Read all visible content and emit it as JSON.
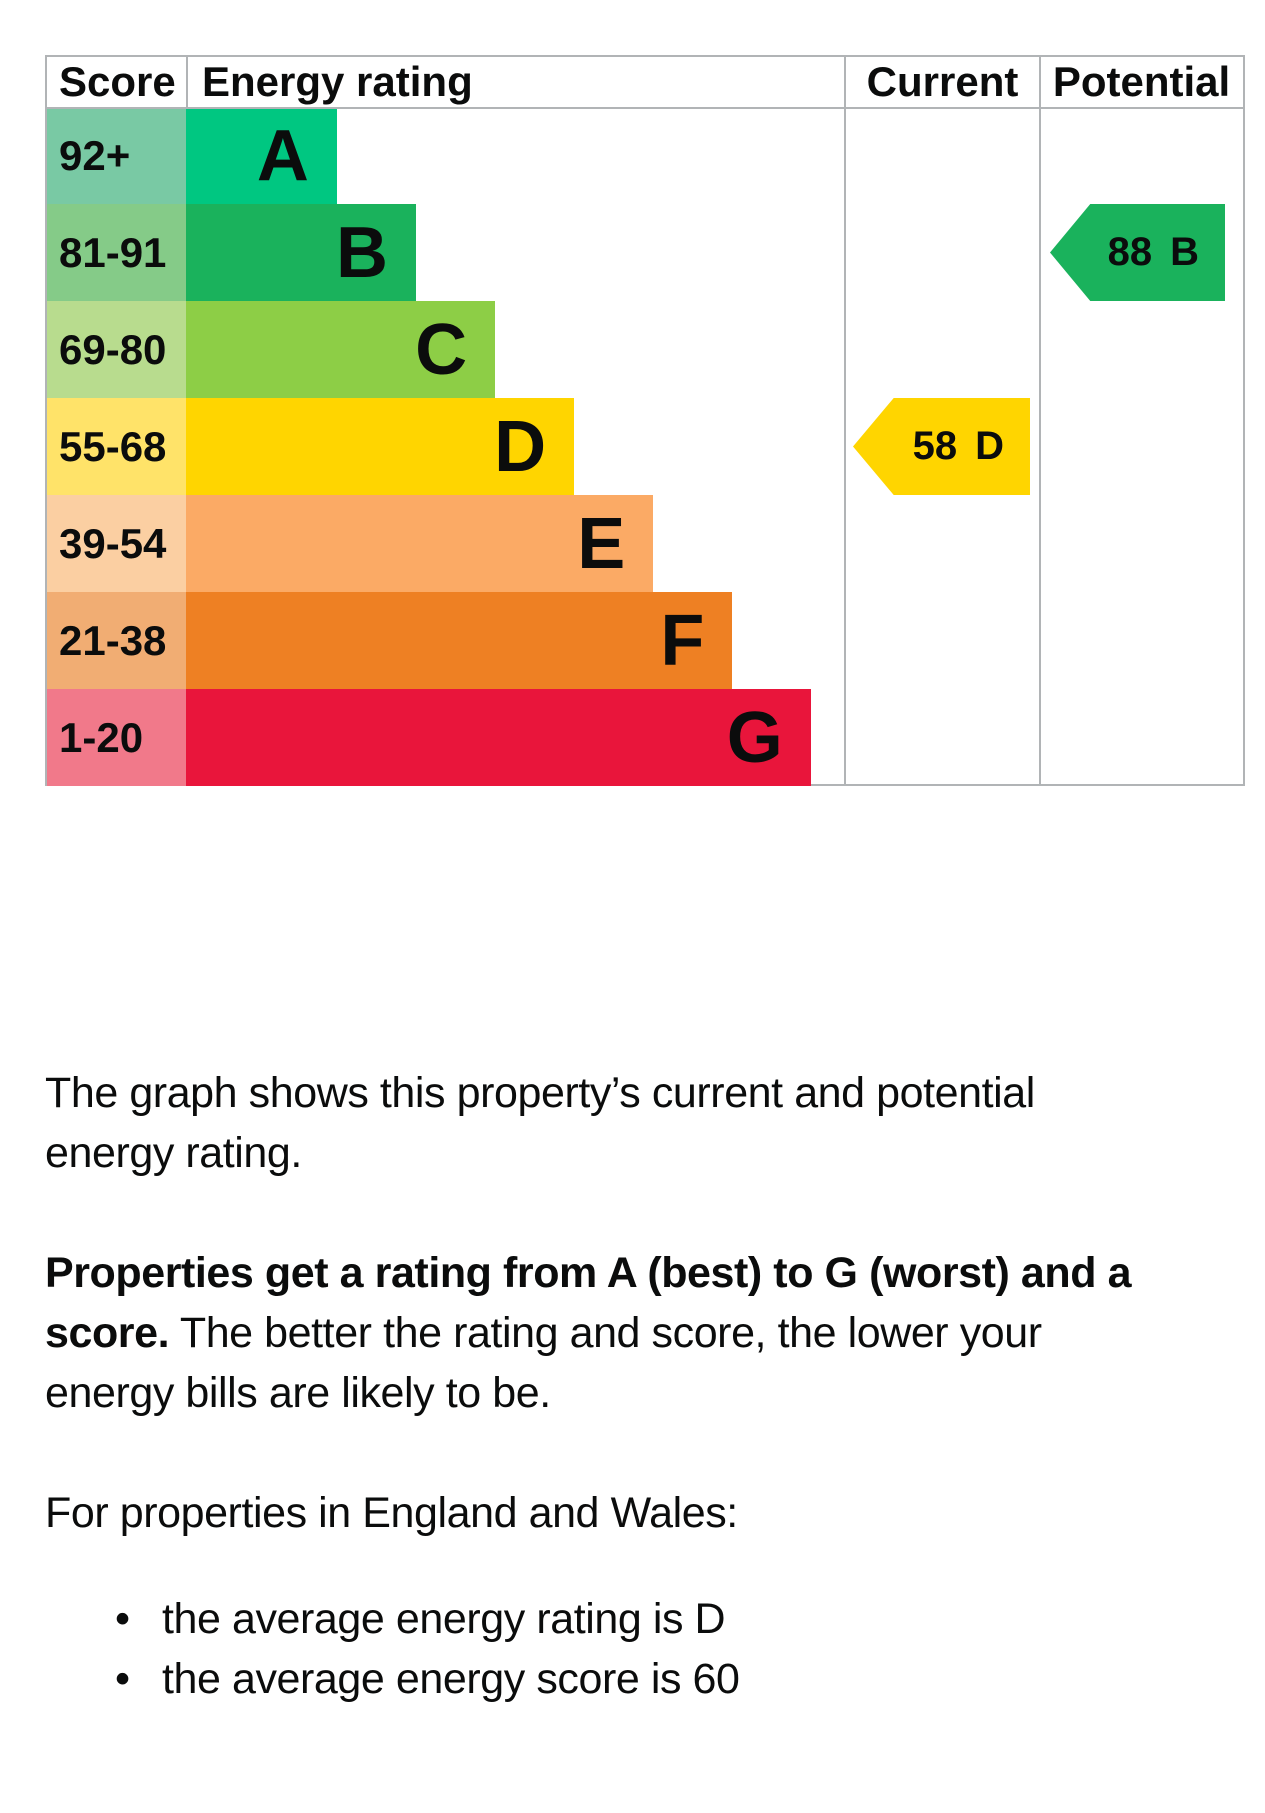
{
  "chart_data": {
    "type": "bar",
    "title": "Energy rating graph",
    "columns": [
      "Score",
      "Energy rating",
      "Current",
      "Potential"
    ],
    "bands": [
      {
        "letter": "A",
        "score_range": "92+",
        "bar_color": "#00c781",
        "score_cell_color": "#79c9a4",
        "width_pct": 22.9
      },
      {
        "letter": "B",
        "score_range": "81-91",
        "bar_color": "#1ab25c",
        "score_cell_color": "#85cb88",
        "width_pct": 34.9
      },
      {
        "letter": "C",
        "score_range": "69-80",
        "bar_color": "#8dce46",
        "score_cell_color": "#b8dc8e",
        "width_pct": 46.9
      },
      {
        "letter": "D",
        "score_range": "55-68",
        "bar_color": "#ffd500",
        "score_cell_color": "#ffe369",
        "width_pct": 58.9
      },
      {
        "letter": "E",
        "score_range": "39-54",
        "bar_color": "#fbaa65",
        "score_cell_color": "#fbcfa2",
        "width_pct": 70.9
      },
      {
        "letter": "F",
        "score_range": "21-38",
        "bar_color": "#ee8023",
        "score_cell_color": "#f1ad73",
        "width_pct": 82.9
      },
      {
        "letter": "G",
        "score_range": "1-20",
        "bar_color": "#e9153b",
        "score_cell_color": "#f1798a",
        "width_pct": 94.8
      }
    ],
    "current": {
      "label": "Current",
      "score": "58",
      "band": "D",
      "arrow_color": "#ffd500"
    },
    "potential": {
      "label": "Potential",
      "score": "88",
      "band": "B",
      "arrow_color": "#1ab25c"
    },
    "axis_note": "bands ordered A (best, 92+) to G (worst, 1-20)",
    "legend_position": "none",
    "grid": false,
    "border_color": "#b1b4b6"
  },
  "table": {
    "headers": {
      "score": "Score",
      "rating": "Energy rating",
      "current": "Current",
      "potential": "Potential"
    }
  },
  "prose": {
    "paragraphs": [
      {
        "tight": false,
        "lines": [
          [
            {
              "t": "The graph shows this property’s current and potential",
              "b": false
            }
          ],
          [
            {
              "t": "energy rating.",
              "b": false
            }
          ]
        ]
      },
      {
        "tight": false,
        "lines": [
          [
            {
              "t": "Properties get a rating from A (best) to G (worst) and a",
              "b": true
            }
          ],
          [
            {
              "t": "score.",
              "b": true
            },
            {
              "t": " The better the rating and score, the lower your",
              "b": false
            }
          ],
          [
            {
              "t": "energy bills are likely to be.",
              "b": false
            }
          ]
        ]
      },
      {
        "tight": true,
        "lines": [
          [
            {
              "t": "For properties in England and Wales:",
              "b": false
            }
          ]
        ]
      }
    ],
    "bullets": [
      "the average energy rating is D",
      "the average energy score is 60"
    ]
  }
}
